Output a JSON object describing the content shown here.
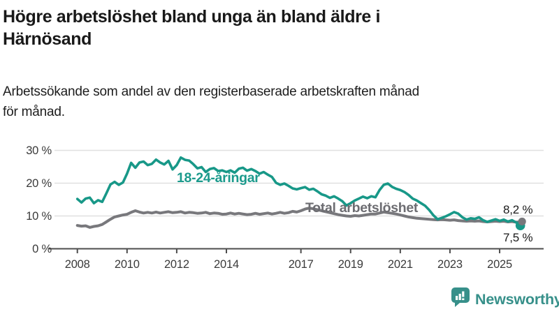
{
  "header": {
    "title_line1": "Högre arbetslöshet bland unga än bland äldre i",
    "title_line2": "Härnösand",
    "subtitle_line1": "Arbetssökande som andel av den registerbaserade arbetskraften månad",
    "subtitle_line2": "för månad."
  },
  "chart_data": {
    "type": "line",
    "title": "Högre arbetslöshet bland unga än bland äldre i Härnösand",
    "subtitle": "Arbetssökande som andel av den registerbaserade arbetskraften månad för månad.",
    "x_start": 2008.0,
    "x_step_years": 0.166667,
    "xlim": [
      2008,
      2026
    ],
    "ylim": [
      0,
      32
    ],
    "grid": "horizontal",
    "legend_position": "inline-labels",
    "yticks": [
      {
        "value": 0,
        "label": "0 %"
      },
      {
        "value": 10,
        "label": "10 %"
      },
      {
        "value": 20,
        "label": "20 %"
      },
      {
        "value": 30,
        "label": "30 %"
      }
    ],
    "xticks": [
      {
        "value": 2008,
        "label": "2008"
      },
      {
        "value": 2010,
        "label": "2010"
      },
      {
        "value": 2012,
        "label": "2012"
      },
      {
        "value": 2014,
        "label": "2014"
      },
      {
        "value": 2017,
        "label": "2017"
      },
      {
        "value": 2019,
        "label": "2019"
      },
      {
        "value": 2021,
        "label": "2021"
      },
      {
        "value": 2023,
        "label": "2023"
      },
      {
        "value": 2025,
        "label": "2025"
      }
    ],
    "series": [
      {
        "name": "Total arbetslöshet",
        "color": "#78787c",
        "label_color": "#6d6d72",
        "end_value": 8.2,
        "end_value_label": "8,2 %",
        "values": [
          7.1,
          6.9,
          7.0,
          6.5,
          6.8,
          7.0,
          7.4,
          8.2,
          9.0,
          9.7,
          10.0,
          10.3,
          10.5,
          11.1,
          11.6,
          11.2,
          10.9,
          11.1,
          10.9,
          11.2,
          10.9,
          11.1,
          11.3,
          11.0,
          11.1,
          11.3,
          10.9,
          11.1,
          11.0,
          10.8,
          10.9,
          11.1,
          10.7,
          10.9,
          10.8,
          10.5,
          10.6,
          10.9,
          10.6,
          10.8,
          10.6,
          10.4,
          10.5,
          10.8,
          10.5,
          10.7,
          10.9,
          10.6,
          10.8,
          11.1,
          10.8,
          11.0,
          11.4,
          11.2,
          11.6,
          12.1,
          12.4,
          12.2,
          11.9,
          11.6,
          11.3,
          11.0,
          10.7,
          10.4,
          10.2,
          10.0,
          9.9,
          10.1,
          10.0,
          10.2,
          10.4,
          10.6,
          10.6,
          10.9,
          11.2,
          11.0,
          10.8,
          10.6,
          10.3,
          10.0,
          9.7,
          9.5,
          9.3,
          9.2,
          9.1,
          9.0,
          8.9,
          8.8,
          8.9,
          8.8,
          8.7,
          8.8,
          8.6,
          8.5,
          8.4,
          8.5,
          8.4,
          8.5,
          8.3,
          8.2,
          8.3,
          8.4,
          8.3,
          8.4,
          8.2,
          8.3,
          8.1,
          8.2
        ]
      },
      {
        "name": "18-24-åringar",
        "color": "#189888",
        "label_color": "#1b9a8c",
        "end_value": 7.5,
        "end_value_label": "7,5 %",
        "values": [
          15.2,
          14.1,
          15.3,
          15.6,
          13.9,
          14.8,
          14.3,
          16.9,
          19.6,
          20.4,
          19.5,
          20.2,
          22.9,
          26.2,
          24.7,
          26.3,
          26.6,
          25.5,
          25.9,
          27.2,
          26.3,
          25.7,
          26.8,
          24.2,
          25.5,
          27.8,
          27.1,
          26.9,
          25.8,
          24.5,
          24.9,
          23.4,
          24.3,
          24.6,
          23.7,
          23.9,
          23.4,
          23.9,
          23.2,
          24.4,
          24.7,
          23.8,
          24.3,
          23.7,
          22.9,
          23.4,
          22.6,
          21.9,
          20.1,
          19.5,
          19.9,
          19.2,
          18.4,
          18.1,
          18.5,
          18.8,
          18.0,
          18.3,
          17.5,
          16.6,
          16.2,
          15.5,
          16.0,
          15.3,
          14.5,
          13.2,
          13.9,
          14.7,
          15.3,
          15.9,
          15.4,
          16.0,
          15.7,
          17.9,
          19.5,
          19.9,
          18.9,
          18.3,
          17.9,
          17.3,
          16.4,
          15.3,
          14.7,
          13.9,
          13.1,
          11.8,
          10.2,
          9.0,
          9.4,
          9.9,
          10.5,
          11.2,
          10.7,
          9.6,
          8.9,
          9.3,
          9.1,
          9.6,
          8.7,
          8.2,
          8.6,
          9.0,
          8.5,
          8.9,
          8.3,
          8.7,
          8.0,
          7.5
        ]
      }
    ],
    "colors": {
      "grid": "#e0e0e0",
      "axis": "#4d4d4d",
      "accent_teal": "#189888",
      "accent_gray": "#78787c"
    }
  },
  "branding": {
    "name": "Newsworthy",
    "icon": "newsworthy-speech-bubble-bar-chart-icon",
    "color": "#37908a"
  }
}
